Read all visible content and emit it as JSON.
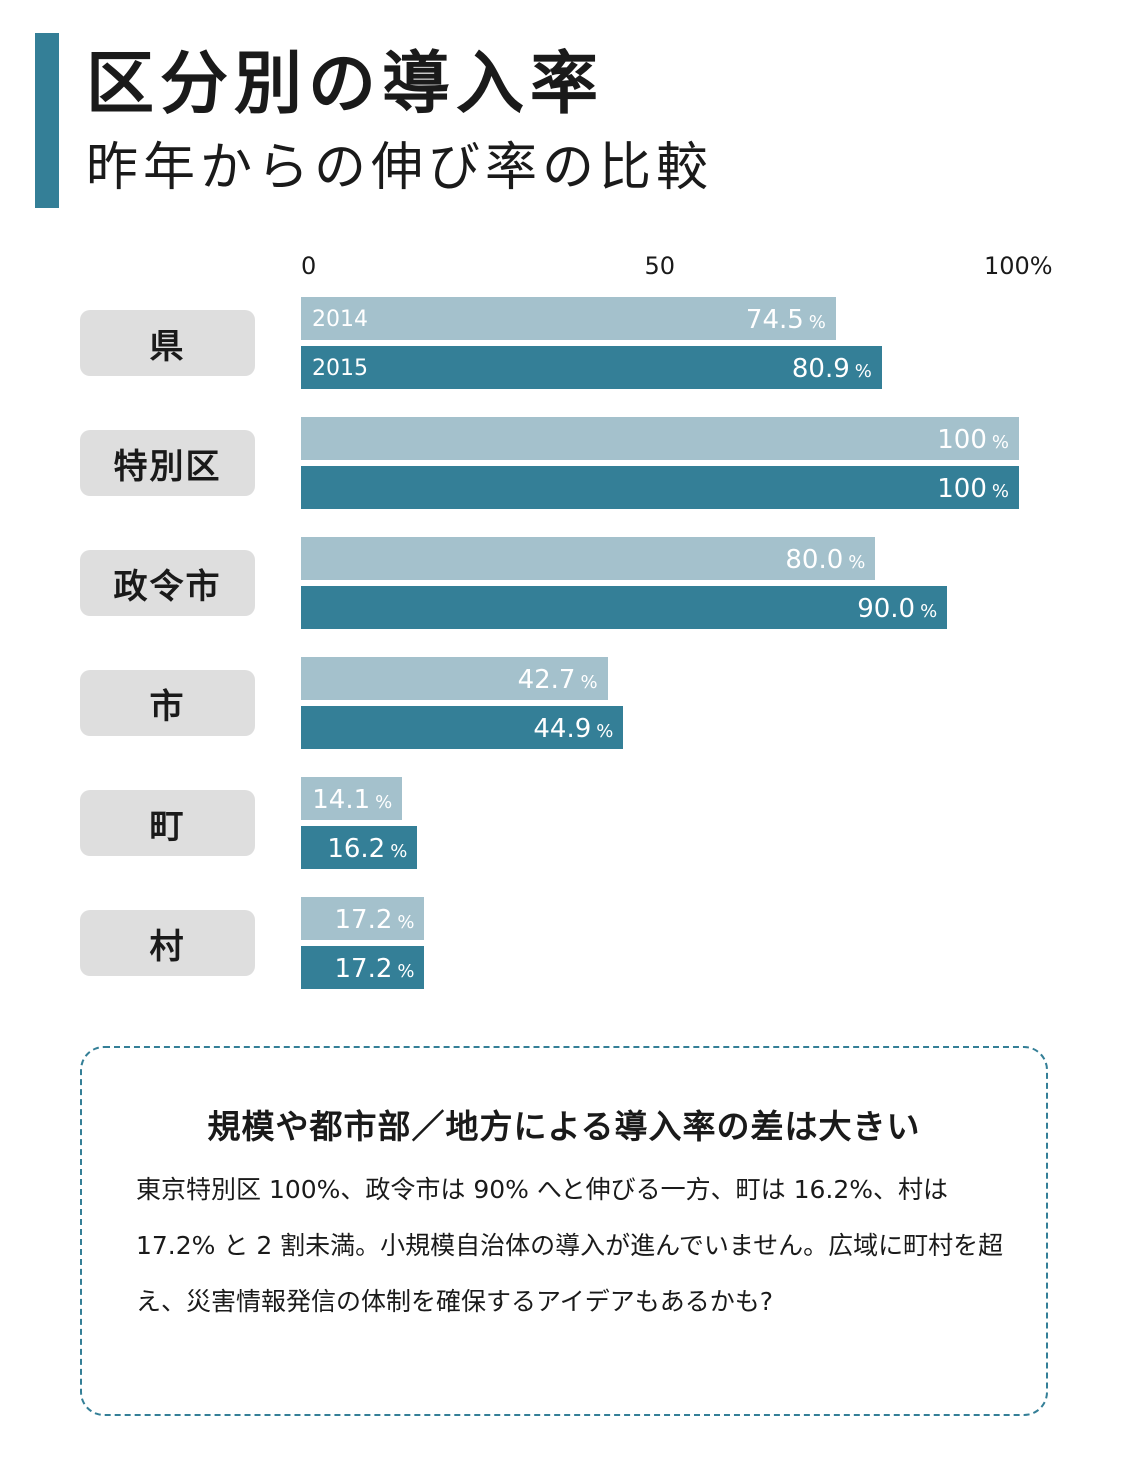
{
  "header": {
    "title": "区分別の導入率",
    "subtitle": "昨年からの伸び率の比較"
  },
  "chart_data": {
    "type": "bar",
    "orientation": "horizontal",
    "axis_ticks": [
      "0",
      "50",
      "100%"
    ],
    "xlim": [
      0,
      100
    ],
    "value_unit": "%",
    "categories": [
      "県",
      "特別区",
      "政令市",
      "市",
      "町",
      "村"
    ],
    "series": [
      {
        "name": "2014",
        "color": "#a4c1cc",
        "values": [
          74.5,
          100,
          80.0,
          42.7,
          14.1,
          17.2
        ],
        "labels": [
          "74.5",
          "100",
          "80.0",
          "42.7",
          "14.1",
          "17.2"
        ]
      },
      {
        "name": "2015",
        "color": "#347f97",
        "values": [
          80.9,
          100,
          90.0,
          44.9,
          16.2,
          17.2
        ],
        "labels": [
          "80.9",
          "100",
          "90.0",
          "44.9",
          "16.2",
          "17.2"
        ]
      }
    ]
  },
  "note": {
    "title": "規模や都市部／地方による導入率の差は大きい",
    "body": "東京特別区 100%、政令市は 90% へと伸びる一方、町は 16.2%、村は 17.2% と 2 割未満。小規模自治体の導入が進んでいません。広域に町村を超え、災害情報発信の体制を確保するアイデアもあるかも?"
  }
}
